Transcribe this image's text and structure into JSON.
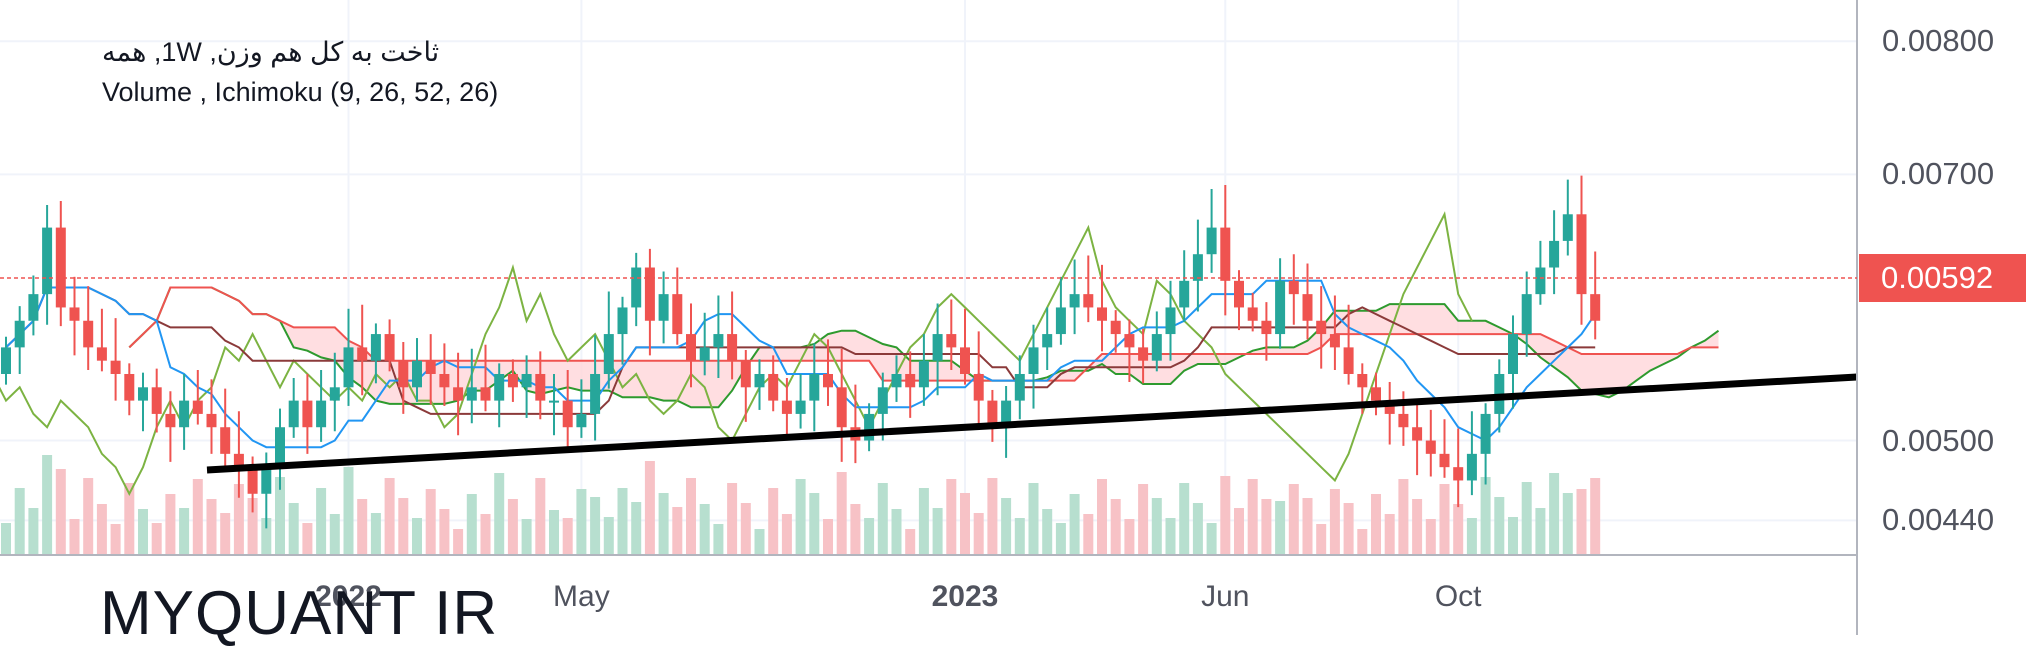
{
  "legend": {
    "line1": "ثاخت به کل هم وزن, 1W, همه",
    "line2": "Volume , Ichimoku (9, 26, 52, 26)"
  },
  "watermark": "MYQUANT IR",
  "last_price": "0.00592",
  "colors": {
    "up": "#26a69a",
    "down": "#ef5350",
    "cloud_bear": "#ffd6d9",
    "cloud_bull": "#d9ecd3",
    "tenkan": "#2196f3",
    "kijun": "#8b3a3a",
    "chikou": "#4caf50",
    "senkou_a": "#2e9a2e",
    "senkou_b": "#ef5350",
    "trendline": "#000000"
  },
  "chart_data": {
    "type": "candlestick",
    "title": "ثاخت به کل هم وزن, 1W, همه",
    "indicators": [
      "Volume",
      "Ichimoku (9, 26, 52, 26)"
    ],
    "y_ticks": [
      "0.00800",
      "0.00700",
      "0.00500",
      "0.00440"
    ],
    "y_tick_values": [
      0.008,
      0.007,
      0.005,
      0.0044
    ],
    "ylim": [
      0.00414,
      0.00831
    ],
    "x_tick_labels": [
      {
        "label": "2022",
        "bold": true,
        "index": 25
      },
      {
        "label": "May",
        "bold": false,
        "index": 42
      },
      {
        "label": "2023",
        "bold": true,
        "index": 70
      },
      {
        "label": "Jun",
        "bold": false,
        "index": 89
      },
      {
        "label": "Oct",
        "bold": false,
        "index": 106
      }
    ],
    "last_price": 0.00592,
    "closes": [
      0.0057,
      0.0059,
      0.0061,
      0.0066,
      0.006,
      0.0059,
      0.0057,
      0.0056,
      0.0055,
      0.0053,
      0.0054,
      0.0052,
      0.0051,
      0.0053,
      0.0052,
      0.0051,
      0.0049,
      0.0048,
      0.0046,
      0.0048,
      0.0051,
      0.0053,
      0.0051,
      0.0053,
      0.0054,
      0.0057,
      0.0056,
      0.0058,
      0.0056,
      0.0054,
      0.0056,
      0.0055,
      0.0054,
      0.0053,
      0.0054,
      0.0053,
      0.0055,
      0.0054,
      0.0055,
      0.0053,
      0.0053,
      0.0051,
      0.0052,
      0.0055,
      0.0058,
      0.006,
      0.0063,
      0.0059,
      0.0061,
      0.0058,
      0.0056,
      0.0057,
      0.0058,
      0.0056,
      0.0054,
      0.0055,
      0.0053,
      0.0052,
      0.0053,
      0.0055,
      0.0054,
      0.0051,
      0.005,
      0.0052,
      0.0054,
      0.0055,
      0.0054,
      0.0056,
      0.0058,
      0.0057,
      0.0055,
      0.0053,
      0.0051,
      0.0053,
      0.0055,
      0.0057,
      0.0058,
      0.006,
      0.0061,
      0.006,
      0.0059,
      0.0058,
      0.0057,
      0.0056,
      0.0058,
      0.006,
      0.0062,
      0.0064,
      0.0066,
      0.0062,
      0.006,
      0.0059,
      0.0058,
      0.0062,
      0.0061,
      0.0059,
      0.0058,
      0.0057,
      0.0055,
      0.0054,
      0.0053,
      0.0052,
      0.0051,
      0.005,
      0.0049,
      0.0048,
      0.0047,
      0.0049,
      0.0052,
      0.0055,
      0.0058,
      0.0061,
      0.0063,
      0.0065,
      0.0067,
      0.0061,
      0.0059
    ],
    "volume_note": "relative weekly volume bars colored by candle direction"
  }
}
